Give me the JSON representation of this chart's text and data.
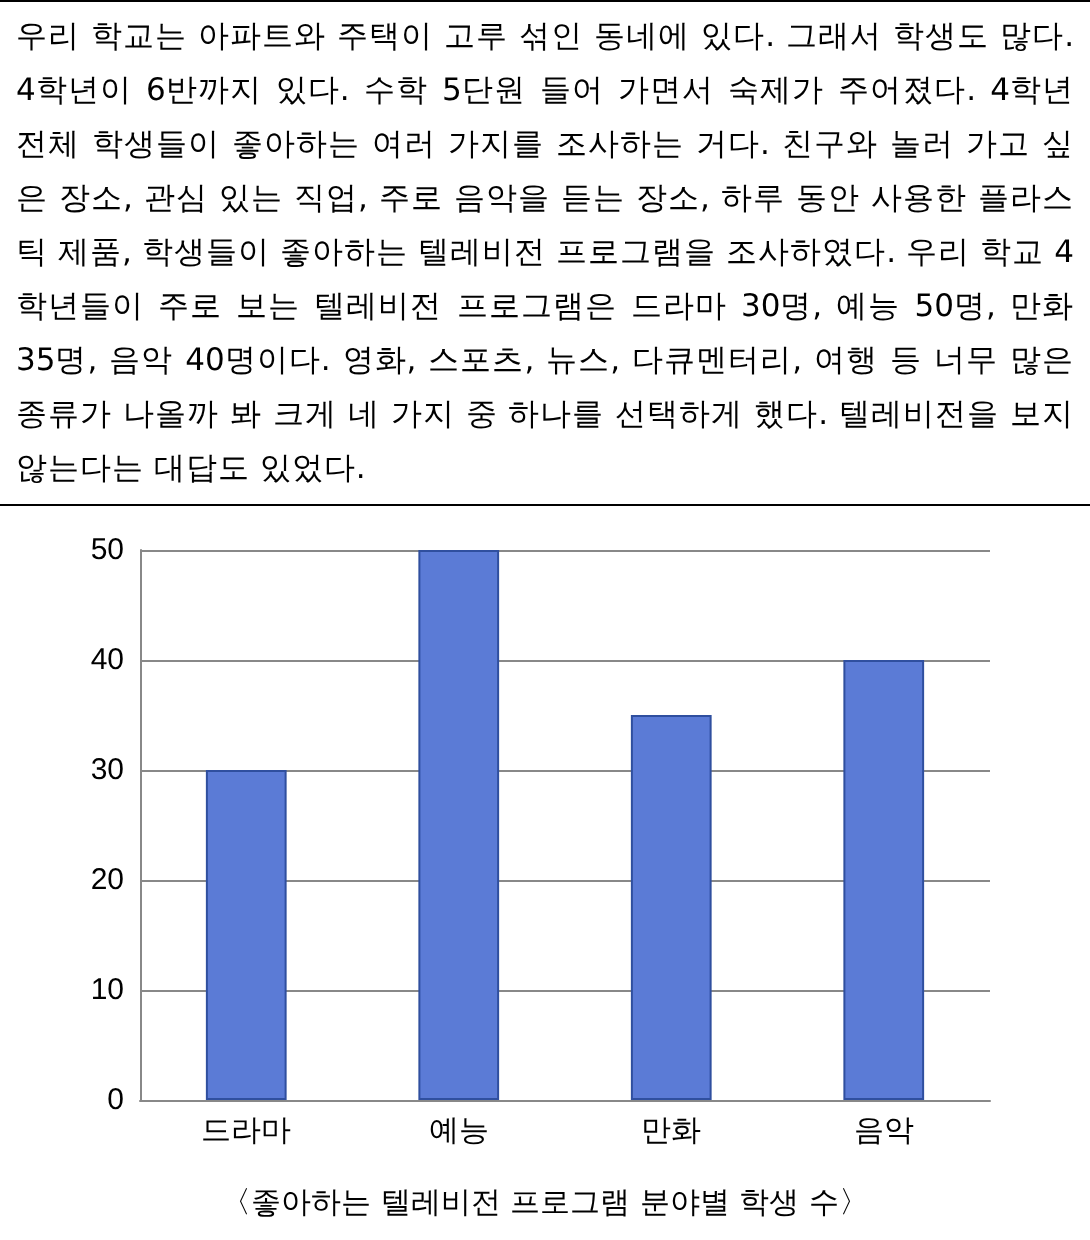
{
  "chart_data": {
    "type": "bar",
    "annotations": [
      "우리 학교는 아파트와 주택이 고루 섞인 동네에 있다. 그래서 학생도 많다. 4학년이 6반까지 있다. 수학 5단원 들어 가면서 숙제가 주어졌다. 4학년 전체 학생들이 좋아하는 여러 가지를 조사하는 거다. 친구와 놀러 가고 싶은 장소, 관심 있는 직업, 주로 음악을 듣는 장소, 하루 동안 사용한 플라스틱 제품, 학생들이 좋아하는 텔레비전 프로그램을 조사하였다. 우리 학교 4학년들이 주로 보는 텔레비전 프로그램은 드라마 30명, 예능 50명, 만화 35명, 음악 40명이다. 영화, 스포츠, 뉴스, 다큐멘터리, 여행 등 너무 많은 종류가 나올까 봐 크게 네 가지 중 하나를 선택하게 했다. 텔레비전을 보지 않는다는 대답도 있었다.",
      "〈좋아하는 텔레비전 프로그램 분야별 학생 수〉"
    ],
    "categories": [
      "드라마",
      "예능",
      "만화",
      "음악"
    ],
    "values": [
      30,
      50,
      35,
      40
    ],
    "color": "#5b7bd6",
    "ylim": [
      0,
      50
    ],
    "yticks": [
      0,
      10,
      20,
      30,
      40,
      50
    ],
    "grid": true
  }
}
